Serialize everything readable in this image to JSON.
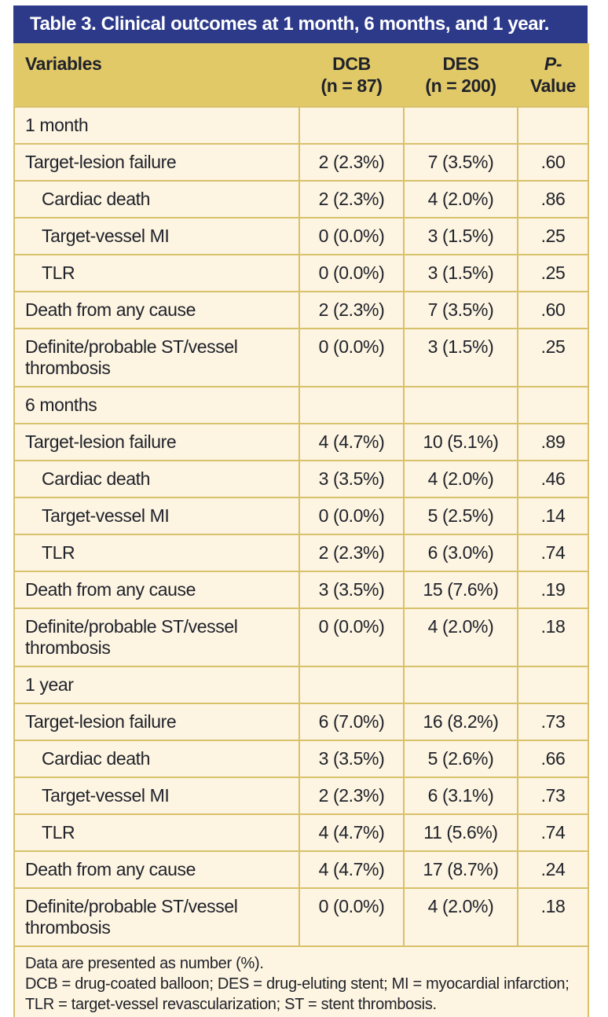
{
  "colors": {
    "title_bar_background": "#2d3a8a",
    "title_text": "#ffffff",
    "header_row_background": "#e1c967",
    "body_background": "#fdf5e1",
    "border": "#d8c16b",
    "text": "#20222b"
  },
  "table": {
    "title": "Table 3. Clinical outcomes at 1 month, 6 months, and 1 year.",
    "columns": {
      "variables": "Variables",
      "dcb_line1": "DCB",
      "dcb_line2": "(n = 87)",
      "des_line1": "DES",
      "des_line2": "(n = 200)",
      "p_italic": "P-",
      "p_rest": "Value"
    },
    "rows": [
      {
        "type": "section",
        "label": "1 month"
      },
      {
        "type": "data",
        "indent": false,
        "label": "Target-lesion failure",
        "dcb": "2 (2.3%)",
        "des": "7 (3.5%)",
        "p": ".60"
      },
      {
        "type": "data",
        "indent": true,
        "label": "Cardiac death",
        "dcb": "2 (2.3%)",
        "des": "4 (2.0%)",
        "p": ".86"
      },
      {
        "type": "data",
        "indent": true,
        "label": "Target-vessel MI",
        "dcb": "0 (0.0%)",
        "des": "3 (1.5%)",
        "p": ".25"
      },
      {
        "type": "data",
        "indent": true,
        "label": "TLR",
        "dcb": "0 (0.0%)",
        "des": "3 (1.5%)",
        "p": ".25"
      },
      {
        "type": "data",
        "indent": false,
        "label": "Death from any cause",
        "dcb": "2 (2.3%)",
        "des": "7 (3.5%)",
        "p": ".60"
      },
      {
        "type": "data",
        "indent": false,
        "label": "Definite/probable ST/vessel thrombosis",
        "dcb": "0 (0.0%)",
        "des": "3 (1.5%)",
        "p": ".25"
      },
      {
        "type": "section",
        "label": "6 months"
      },
      {
        "type": "data",
        "indent": false,
        "label": "Target-lesion failure",
        "dcb": "4 (4.7%)",
        "des": "10 (5.1%)",
        "p": ".89"
      },
      {
        "type": "data",
        "indent": true,
        "label": "Cardiac death",
        "dcb": "3 (3.5%)",
        "des": "4 (2.0%)",
        "p": ".46"
      },
      {
        "type": "data",
        "indent": true,
        "label": "Target-vessel MI",
        "dcb": "0 (0.0%)",
        "des": "5 (2.5%)",
        "p": ".14"
      },
      {
        "type": "data",
        "indent": true,
        "label": "TLR",
        "dcb": "2 (2.3%)",
        "des": "6 (3.0%)",
        "p": ".74"
      },
      {
        "type": "data",
        "indent": false,
        "label": "Death from any cause",
        "dcb": "3 (3.5%)",
        "des": "15 (7.6%)",
        "p": ".19"
      },
      {
        "type": "data",
        "indent": false,
        "label": "Definite/probable ST/vessel thrombosis",
        "dcb": "0 (0.0%)",
        "des": "4 (2.0%)",
        "p": ".18"
      },
      {
        "type": "section",
        "label": "1 year"
      },
      {
        "type": "data",
        "indent": false,
        "label": "Target-lesion failure",
        "dcb": "6 (7.0%)",
        "des": "16 (8.2%)",
        "p": ".73"
      },
      {
        "type": "data",
        "indent": true,
        "label": "Cardiac death",
        "dcb": "3 (3.5%)",
        "des": "5 (2.6%)",
        "p": ".66"
      },
      {
        "type": "data",
        "indent": true,
        "label": "Target-vessel MI",
        "dcb": "2 (2.3%)",
        "des": "6 (3.1%)",
        "p": ".73"
      },
      {
        "type": "data",
        "indent": true,
        "label": "TLR",
        "dcb": "4 (4.7%)",
        "des": "11 (5.6%)",
        "p": ".74"
      },
      {
        "type": "data",
        "indent": false,
        "label": "Death from any cause",
        "dcb": "4 (4.7%)",
        "des": "17 (8.7%)",
        "p": ".24"
      },
      {
        "type": "data",
        "indent": false,
        "label": "Definite/probable ST/vessel thrombosis",
        "dcb": "0 (0.0%)",
        "des": "4 (2.0%)",
        "p": ".18"
      }
    ],
    "footnotes": [
      "Data are presented as number (%).",
      "DCB = drug-coated balloon; DES = drug-eluting stent; MI = myocardial infarction; TLR = target-vessel revascularization; ST = stent thrombosis."
    ]
  }
}
